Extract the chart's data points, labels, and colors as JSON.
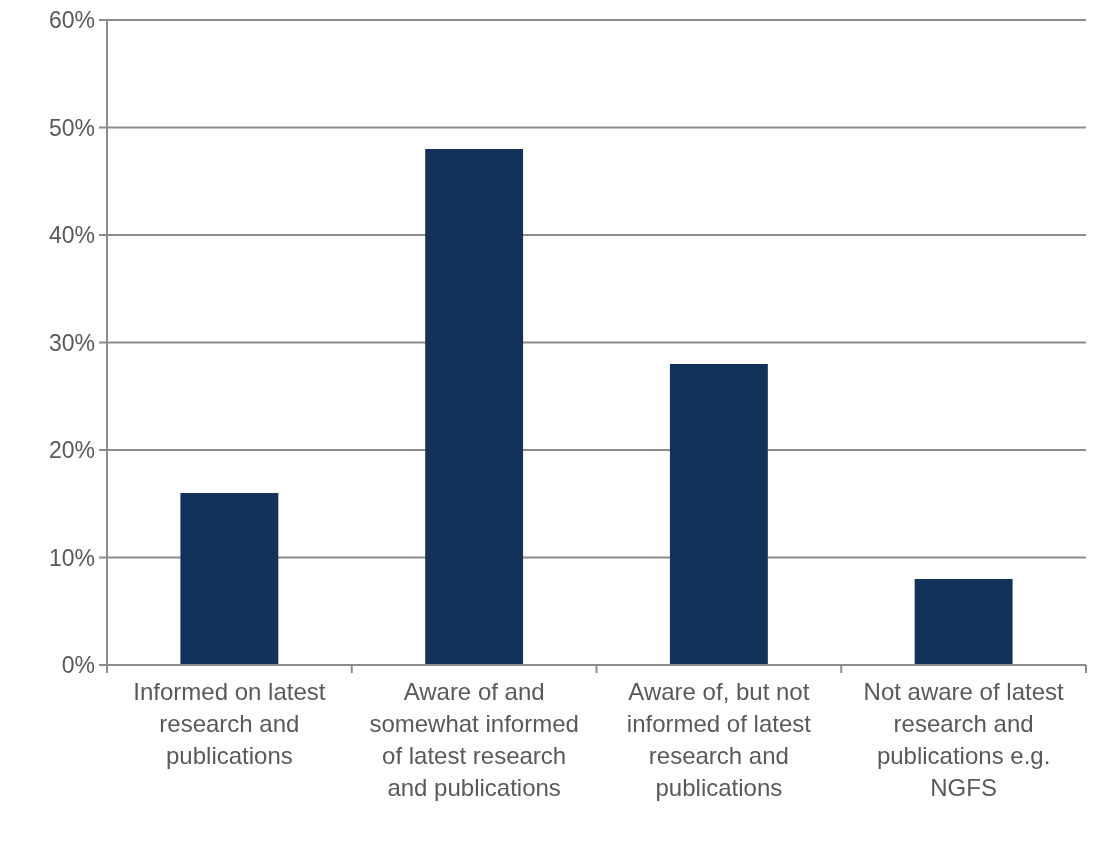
{
  "chart_data": {
    "type": "bar",
    "categories": [
      "Informed on latest research and publications",
      "Aware of and somewhat informed of latest research and publications",
      "Aware of, but not informed of latest research and publications",
      "Not aware of latest research and publications e.g. NGFS"
    ],
    "values": [
      16,
      48,
      28,
      8
    ],
    "color": "#13325a",
    "ylim": [
      0,
      60
    ],
    "yticks": [
      {
        "value": 0,
        "label": "0%"
      },
      {
        "value": 10,
        "label": "10%"
      },
      {
        "value": 20,
        "label": "20%"
      },
      {
        "value": 30,
        "label": "30%"
      },
      {
        "value": 40,
        "label": "40%"
      },
      {
        "value": 50,
        "label": "50%"
      },
      {
        "value": 60,
        "label": "60%"
      }
    ],
    "grid": "y"
  }
}
